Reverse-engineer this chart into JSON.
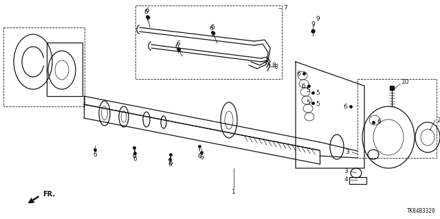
{
  "background_color": "#ffffff",
  "diagram_id": "TK84B3320",
  "fig_width": 6.4,
  "fig_height": 3.19,
  "dpi": 100,
  "color": "#111111",
  "lw_main": 0.9,
  "lw_thin": 0.5,
  "lw_dash": 0.5
}
